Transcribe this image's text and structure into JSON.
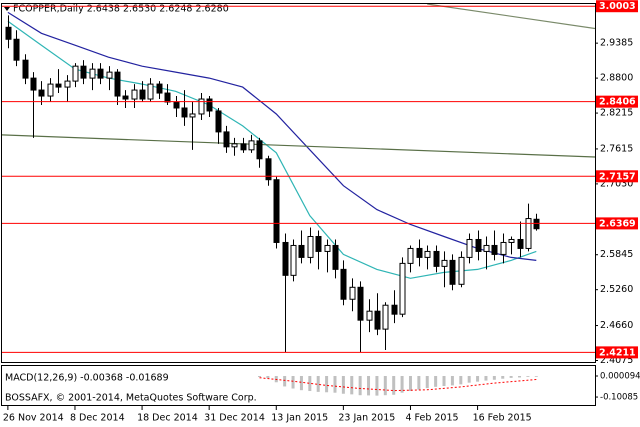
{
  "chart_data": {
    "type": "candlestick",
    "title": "FCOPPER,Daily  2.6438 2.6530 2.6248 2.6280",
    "footer": "BOSSAFX, © 2001-2014, MetaQuotes Software Corp.",
    "categories": [
      "26 Nov 2014",
      null,
      null,
      null,
      null,
      null,
      null,
      null,
      "8 Dec 2014",
      null,
      null,
      null,
      null,
      null,
      null,
      null,
      "18 Dec 2014",
      null,
      null,
      null,
      null,
      null,
      null,
      null,
      "31 Dec 2014",
      null,
      null,
      null,
      null,
      null,
      null,
      null,
      "13 Jan 2015",
      null,
      null,
      null,
      null,
      null,
      null,
      null,
      "23 Jan 2015",
      null,
      null,
      null,
      null,
      null,
      null,
      null,
      "4 Feb 2015",
      null,
      null,
      null,
      null,
      null,
      null,
      null,
      "16 Feb 2015",
      null,
      null,
      null,
      null,
      null,
      null,
      null
    ],
    "open": [
      2.965,
      2.945,
      2.91,
      2.88,
      2.86,
      2.85,
      2.87,
      2.865,
      2.875,
      2.9,
      2.88,
      2.895,
      2.88,
      2.89,
      2.85,
      2.845,
      2.86,
      2.845,
      2.87,
      2.855,
      2.84,
      2.83,
      2.815,
      2.82,
      2.845,
      2.825,
      2.79,
      2.765,
      2.77,
      2.76,
      2.775,
      2.745,
      2.71,
      2.605,
      2.55,
      2.6,
      2.58,
      2.615,
      2.59,
      2.6,
      2.56,
      2.51,
      2.53,
      2.475,
      2.49,
      2.46,
      2.5,
      2.485,
      2.57,
      2.595,
      2.58,
      2.59,
      2.565,
      2.575,
      2.535,
      2.58,
      2.61,
      2.59,
      2.6,
      2.585,
      2.605,
      2.61,
      2.595,
      2.6438
    ],
    "high": [
      2.985,
      2.96,
      2.92,
      2.89,
      2.875,
      2.88,
      2.895,
      2.885,
      2.905,
      2.91,
      2.905,
      2.905,
      2.9,
      2.895,
      2.86,
      2.87,
      2.875,
      2.88,
      2.875,
      2.87,
      2.85,
      2.86,
      2.84,
      2.855,
      2.85,
      2.83,
      2.8,
      2.78,
      2.78,
      2.785,
      2.78,
      2.75,
      2.715,
      2.62,
      2.61,
      2.625,
      2.63,
      2.625,
      2.61,
      2.61,
      2.575,
      2.545,
      2.54,
      2.51,
      2.52,
      2.505,
      2.525,
      2.58,
      2.6,
      2.61,
      2.6,
      2.6,
      2.59,
      2.585,
      2.59,
      2.62,
      2.625,
      2.615,
      2.625,
      2.62,
      2.615,
      2.64,
      2.67,
      2.653
    ],
    "low": [
      2.93,
      2.9,
      2.87,
      2.78,
      2.835,
      2.84,
      2.855,
      2.84,
      2.865,
      2.87,
      2.86,
      2.87,
      2.86,
      2.835,
      2.83,
      2.83,
      2.84,
      2.84,
      2.845,
      2.835,
      2.815,
      2.8,
      2.76,
      2.81,
      2.815,
      2.77,
      2.755,
      2.75,
      2.755,
      2.755,
      2.73,
      2.7,
      2.595,
      2.421,
      2.54,
      2.57,
      2.57,
      2.56,
      2.555,
      2.545,
      2.5,
      2.49,
      2.421,
      2.455,
      2.45,
      2.425,
      2.47,
      2.48,
      2.555,
      2.565,
      2.56,
      2.555,
      2.53,
      2.525,
      2.53,
      2.57,
      2.575,
      2.56,
      2.575,
      2.57,
      2.585,
      2.58,
      2.59,
      2.6248
    ],
    "close": [
      2.945,
      2.91,
      2.88,
      2.86,
      2.85,
      2.87,
      2.865,
      2.875,
      2.9,
      2.88,
      2.895,
      2.88,
      2.89,
      2.85,
      2.845,
      2.86,
      2.845,
      2.87,
      2.855,
      2.84,
      2.83,
      2.815,
      2.82,
      2.845,
      2.825,
      2.79,
      2.765,
      2.77,
      2.76,
      2.775,
      2.745,
      2.71,
      2.605,
      2.55,
      2.6,
      2.58,
      2.615,
      2.59,
      2.6,
      2.56,
      2.51,
      2.53,
      2.475,
      2.49,
      2.46,
      2.5,
      2.485,
      2.57,
      2.595,
      2.58,
      2.59,
      2.565,
      2.575,
      2.535,
      2.58,
      2.61,
      2.59,
      2.6,
      2.585,
      2.605,
      2.61,
      2.595,
      2.645,
      2.628
    ],
    "up_color": "#ffffff",
    "down_color": "#000000",
    "xlim": [
      -0.7,
      70
    ],
    "ylim": [
      2.405,
      3.004
    ],
    "yticks": [
      2.9385,
      {
        "value": 2.88,
        "label": "2.8800"
      },
      2.8215,
      2.7615,
      {
        "value": 2.703,
        "label": "2.7030"
      },
      2.5845,
      {
        "value": 2.526,
        "label": "2.5260"
      },
      {
        "value": 2.466,
        "label": "2.4660"
      },
      2.4075
    ],
    "levels": [
      3.0003,
      2.8406,
      2.7157,
      2.6369,
      2.4211
    ],
    "level_color": "#ff0000",
    "lines": [
      {
        "color": "#2fb5b5",
        "x": [
          0,
          4,
          8,
          12,
          16,
          20,
          24,
          28,
          32,
          36,
          40,
          44,
          48,
          52,
          56,
          60,
          63
        ],
        "values": [
          2.975,
          2.935,
          2.895,
          2.88,
          2.87,
          2.858,
          2.835,
          2.8,
          2.755,
          2.65,
          2.585,
          2.56,
          2.545,
          2.555,
          2.56,
          2.575,
          2.59
        ]
      },
      {
        "color": "#2323a0",
        "x": [
          0,
          4,
          8,
          12,
          16,
          20,
          24,
          28,
          32,
          36,
          40,
          44,
          48,
          52,
          56,
          60,
          63
        ],
        "values": [
          2.99,
          2.955,
          2.935,
          2.915,
          2.9,
          2.89,
          2.88,
          2.865,
          2.82,
          2.76,
          2.7,
          2.66,
          2.635,
          2.615,
          2.595,
          2.58,
          2.575
        ]
      },
      {
        "color": "#5a7048",
        "x": [
          -0.7,
          70
        ],
        "values": [
          2.785,
          2.748
        ]
      },
      {
        "color": "#7a8a6a",
        "x": [
          50,
          70
        ],
        "values": [
          3.004,
          2.963
        ]
      }
    ],
    "macd": {
      "label": "MACD(12,26,9) -0.00368 -0.01689",
      "ylim": [
        -0.139,
        0.048
      ],
      "yticks": [
        9.4e-05,
        -0.10085
      ],
      "color": "#c0c0c0",
      "histogram": [
        null,
        null,
        null,
        null,
        null,
        null,
        null,
        null,
        null,
        null,
        null,
        null,
        null,
        null,
        null,
        null,
        null,
        null,
        null,
        null,
        null,
        null,
        null,
        null,
        null,
        null,
        null,
        null,
        null,
        null,
        -0.005,
        -0.01,
        -0.03,
        -0.05,
        -0.06,
        -0.068,
        -0.072,
        -0.076,
        -0.078,
        -0.08,
        -0.085,
        -0.088,
        -0.092,
        -0.093,
        -0.094,
        -0.092,
        -0.09,
        -0.08,
        -0.072,
        -0.065,
        -0.058,
        -0.052,
        -0.048,
        -0.045,
        -0.04,
        -0.032,
        -0.027,
        -0.022,
        -0.018,
        -0.013,
        -0.009,
        -0.007,
        -0.004,
        -0.00368
      ],
      "signal": {
        "color": "#ff0000",
        "x": [
          30,
          34,
          38,
          42,
          46,
          50,
          54,
          58,
          63
        ],
        "values": [
          -0.008,
          -0.025,
          -0.045,
          -0.06,
          -0.07,
          -0.066,
          -0.052,
          -0.034,
          -0.01689
        ]
      }
    }
  }
}
